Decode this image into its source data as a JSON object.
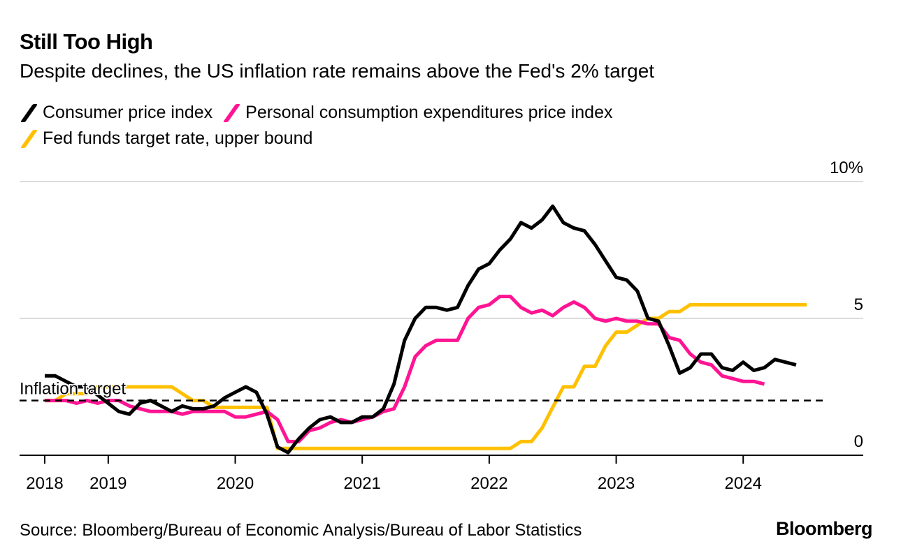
{
  "header": {
    "title": "Still Too High",
    "subtitle": "Despite declines, the US inflation rate remains above the Fed's 2% target"
  },
  "legend": [
    {
      "label": "Consumer price index",
      "color": "#000000"
    },
    {
      "label": "Personal consumption expenditures price index",
      "color": "#ff1493"
    },
    {
      "label": "Fed funds target rate, upper bound",
      "color": "#ffc000"
    }
  ],
  "footer": {
    "source": "Source: Bloomberg/Bureau of Economic Analysis/Bureau of Labor Statistics",
    "brand": "Bloomberg"
  },
  "chart_data": {
    "type": "line",
    "title": "Still Too High",
    "subtitle": "Despite declines, the US inflation rate remains above the Fed's 2% target",
    "xlabel": "",
    "ylabel": "",
    "x_start": "2018-07",
    "x_frequency": "monthly",
    "x_ticks": [
      {
        "label": "2018",
        "month_index": 0
      },
      {
        "label": "2019",
        "month_index": 6
      },
      {
        "label": "2020",
        "month_index": 18
      },
      {
        "label": "2021",
        "month_index": 30
      },
      {
        "label": "2022",
        "month_index": 42
      },
      {
        "label": "2023",
        "month_index": 54
      },
      {
        "label": "2024",
        "month_index": 66
      }
    ],
    "y_ticks": [
      {
        "value": 0,
        "label": "0"
      },
      {
        "value": 5,
        "label": "5"
      },
      {
        "value": 10,
        "label": "10%"
      }
    ],
    "ylim": [
      0,
      10
    ],
    "y_axis_position": "right",
    "grid": true,
    "reference_line": {
      "value": 2,
      "label": "Inflation target",
      "style": "dashed"
    },
    "series": [
      {
        "name": "Consumer price index",
        "color": "#000000",
        "start_index": 0,
        "values": [
          2.9,
          2.9,
          2.7,
          2.5,
          2.5,
          2.2,
          1.9,
          1.6,
          1.5,
          1.9,
          2.0,
          1.8,
          1.6,
          1.8,
          1.7,
          1.7,
          1.8,
          2.1,
          2.3,
          2.5,
          2.3,
          1.5,
          0.3,
          0.1,
          0.6,
          1.0,
          1.3,
          1.4,
          1.2,
          1.2,
          1.4,
          1.4,
          1.7,
          2.6,
          4.2,
          5.0,
          5.4,
          5.4,
          5.3,
          5.4,
          6.2,
          6.8,
          7.0,
          7.5,
          7.9,
          8.5,
          8.3,
          8.6,
          9.1,
          8.5,
          8.3,
          8.2,
          7.7,
          7.1,
          6.5,
          6.4,
          6.0,
          5.0,
          4.9,
          4.0,
          3.0,
          3.2,
          3.7,
          3.7,
          3.2,
          3.1,
          3.4,
          3.1,
          3.2,
          3.5,
          3.4,
          3.3
        ]
      },
      {
        "name": "Personal consumption expenditures price index",
        "color": "#ff1493",
        "start_index": 0,
        "values": [
          2.0,
          2.0,
          2.0,
          1.9,
          2.0,
          1.9,
          2.0,
          2.0,
          1.8,
          1.7,
          1.6,
          1.6,
          1.6,
          1.5,
          1.6,
          1.6,
          1.6,
          1.6,
          1.4,
          1.4,
          1.5,
          1.6,
          1.3,
          0.5,
          0.5,
          0.9,
          1.0,
          1.2,
          1.3,
          1.2,
          1.3,
          1.4,
          1.6,
          1.7,
          2.5,
          3.6,
          4.0,
          4.2,
          4.2,
          4.2,
          5.0,
          5.4,
          5.5,
          5.8,
          5.8,
          5.4,
          5.2,
          5.3,
          5.1,
          5.4,
          5.6,
          5.4,
          5.0,
          4.9,
          5.0,
          4.9,
          4.9,
          4.8,
          4.8,
          4.3,
          4.2,
          3.7,
          3.4,
          3.3,
          2.9,
          2.8,
          2.7,
          2.7,
          2.6
        ]
      },
      {
        "name": "Fed funds target rate, upper bound",
        "color": "#ffc000",
        "start_index": 0,
        "values": [
          2.0,
          2.0,
          2.25,
          2.25,
          2.25,
          2.5,
          2.5,
          2.5,
          2.5,
          2.5,
          2.5,
          2.5,
          2.5,
          2.25,
          2.0,
          2.0,
          1.75,
          1.75,
          1.75,
          1.75,
          1.75,
          1.75,
          0.25,
          0.25,
          0.25,
          0.25,
          0.25,
          0.25,
          0.25,
          0.25,
          0.25,
          0.25,
          0.25,
          0.25,
          0.25,
          0.25,
          0.25,
          0.25,
          0.25,
          0.25,
          0.25,
          0.25,
          0.25,
          0.25,
          0.25,
          0.5,
          0.5,
          1.0,
          1.75,
          2.5,
          2.5,
          3.25,
          3.25,
          4.0,
          4.5,
          4.5,
          4.75,
          5.0,
          5.0,
          5.25,
          5.25,
          5.5,
          5.5,
          5.5,
          5.5,
          5.5,
          5.5,
          5.5,
          5.5,
          5.5,
          5.5,
          5.5,
          5.5
        ]
      }
    ]
  }
}
